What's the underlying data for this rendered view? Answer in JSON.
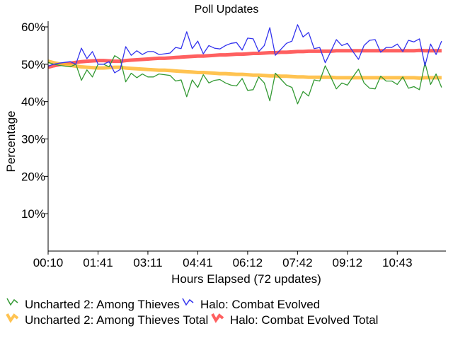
{
  "chart_data": {
    "type": "line",
    "title": "Poll Updates",
    "xlabel": "Hours Elapsed (72 updates)",
    "ylabel": "Percentage",
    "ylim": [
      0,
      60
    ],
    "yticks": [
      "10%",
      "20%",
      "30%",
      "40%",
      "50%",
      "60%"
    ],
    "ytick_values": [
      10,
      20,
      30,
      40,
      50,
      60
    ],
    "xticks": [
      "00:10",
      "01:41",
      "03:11",
      "04:41",
      "06:12",
      "07:42",
      "09:12",
      "10:43"
    ],
    "xtick_indices": [
      0,
      9,
      18,
      27,
      36,
      45,
      54,
      63
    ],
    "grid": false,
    "legend_position": "bottom",
    "series": [
      {
        "name": "Uncharted 2: Among Thieves",
        "color": "#339933",
        "width": 1.3,
        "values": [
          50.5,
          50,
          49.7,
          49.5,
          49.3,
          50,
          45.7,
          48.5,
          46.6,
          50,
          50,
          49.3,
          52.3,
          51.4,
          45.3,
          47.6,
          46.4,
          47.4,
          46.6,
          46.6,
          47.4,
          47.2,
          47,
          45.5,
          45.8,
          41.3,
          45.8,
          43.8,
          47.2,
          45,
          45.7,
          45.9,
          45,
          44.4,
          44.2,
          46.2,
          43,
          43.2,
          46.6,
          45,
          40.2,
          47.6,
          46,
          44.4,
          43.8,
          39.4,
          42.7,
          41.5,
          45.8,
          45.5,
          49.6,
          46.6,
          43.4,
          45,
          44.4,
          46.6,
          48.7,
          45,
          43.6,
          43.4,
          46.8,
          45.5,
          45.5,
          44.6,
          46.6,
          43.6,
          44,
          43.2,
          50.4,
          44.6,
          47.4,
          43.8
        ]
      },
      {
        "name": "Halo: Combat Evolved",
        "color": "#3333ee",
        "width": 1.3,
        "values": [
          49.5,
          50,
          50.3,
          50.5,
          50.7,
          50,
          54.3,
          51.5,
          53.4,
          50,
          50,
          50.7,
          47.7,
          48.6,
          54.7,
          52.4,
          53.6,
          52.6,
          53.4,
          53.4,
          52.6,
          52.8,
          53,
          54.5,
          54.2,
          58.7,
          54.2,
          56.2,
          52.8,
          55,
          54.3,
          54.1,
          55,
          55.6,
          55.8,
          53.8,
          57,
          56.8,
          53.4,
          55,
          59.8,
          52.4,
          54,
          55.6,
          56.2,
          60.6,
          57.3,
          58.5,
          54.2,
          54.5,
          50.4,
          53.4,
          56.6,
          55,
          55.6,
          53.4,
          51.3,
          55,
          56.4,
          56.6,
          53.2,
          54.5,
          54.5,
          55.4,
          53.4,
          56.4,
          56,
          56.8,
          49.6,
          55.4,
          52.6,
          56.2
        ]
      },
      {
        "name": "Uncharted 2: Among Thieves Total",
        "color": "#ffb833",
        "width": 5,
        "values": [
          50.8,
          50.4,
          50.1,
          49.9,
          49.7,
          49.5,
          49.3,
          49.2,
          49.1,
          49,
          49,
          49.1,
          49.2,
          49.2,
          49,
          48.9,
          48.8,
          48.7,
          48.6,
          48.5,
          48.4,
          48.4,
          48.3,
          48.2,
          48.1,
          48,
          47.9,
          47.8,
          47.8,
          47.7,
          47.6,
          47.5,
          47.5,
          47.4,
          47.3,
          47.3,
          47.2,
          47.1,
          47.1,
          47,
          46.9,
          46.9,
          46.8,
          46.8,
          46.7,
          46.6,
          46.6,
          46.5,
          46.5,
          46.5,
          46.5,
          46.5,
          46.4,
          46.4,
          46.4,
          46.4,
          46.4,
          46.4,
          46.4,
          46.4,
          46.4,
          46.4,
          46.4,
          46.4,
          46.4,
          46.4,
          46.4,
          46.3,
          46.4,
          46.4,
          46.4,
          46.4
        ]
      },
      {
        "name": "Halo: Combat Evolved Total",
        "color": "#ff4444",
        "width": 5,
        "values": [
          49.2,
          49.6,
          49.9,
          50.1,
          50.3,
          50.5,
          50.7,
          50.8,
          50.9,
          51,
          51,
          50.9,
          50.8,
          50.8,
          51,
          51.1,
          51.2,
          51.3,
          51.4,
          51.5,
          51.6,
          51.6,
          51.7,
          51.8,
          51.9,
          52,
          52.1,
          52.2,
          52.2,
          52.3,
          52.4,
          52.5,
          52.5,
          52.6,
          52.7,
          52.7,
          52.8,
          52.9,
          52.9,
          53,
          53.1,
          53.1,
          53.2,
          53.2,
          53.3,
          53.4,
          53.4,
          53.5,
          53.5,
          53.5,
          53.5,
          53.5,
          53.6,
          53.6,
          53.6,
          53.6,
          53.6,
          53.6,
          53.6,
          53.6,
          53.6,
          53.6,
          53.6,
          53.6,
          53.6,
          53.6,
          53.6,
          53.7,
          53.6,
          53.6,
          53.6,
          53.6
        ]
      }
    ]
  }
}
